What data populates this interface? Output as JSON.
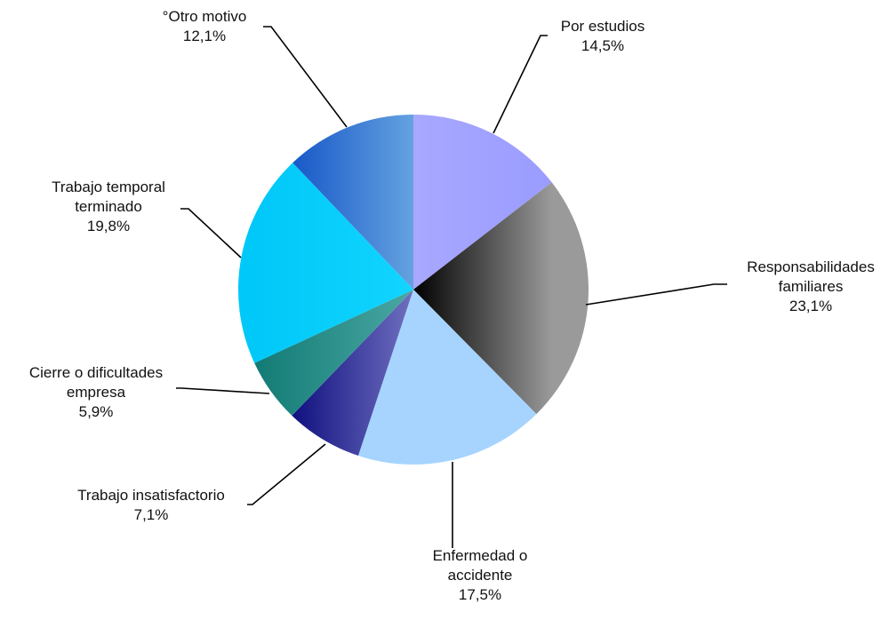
{
  "chart_data": {
    "type": "pie",
    "title": "",
    "start_angle_deg": 0,
    "direction": "clockwise",
    "slices": [
      {
        "label_lines": [
          "Por estudios"
        ],
        "percent_label": "14,5%",
        "value": 14.5,
        "color_start": "#a8a8ff",
        "color_end": "#9a9cff"
      },
      {
        "label_lines": [
          "Responsabilidades",
          "familiares"
        ],
        "percent_label": "23,1%",
        "value": 23.1,
        "color_start": "#000000",
        "color_end": "#9a9a9a"
      },
      {
        "label_lines": [
          "Enfermedad o",
          "accidente"
        ],
        "percent_label": "17,5%",
        "value": 17.5,
        "color_start": "#a6d4ff",
        "color_end": "#a6d4ff"
      },
      {
        "label_lines": [
          "Trabajo insatisfactorio"
        ],
        "percent_label": "7,1%",
        "value": 7.1,
        "color_start": "#101080",
        "color_end": "#7070c0"
      },
      {
        "label_lines": [
          "Cierre o dificultades",
          "empresa"
        ],
        "percent_label": "5,9%",
        "value": 5.9,
        "color_start": "#127a74",
        "color_end": "#4aa8a4"
      },
      {
        "label_lines": [
          "Trabajo temporal",
          "terminado"
        ],
        "percent_label": "19,8%",
        "value": 19.8,
        "color_start": "#00c8f8",
        "color_end": "#12d4ff"
      },
      {
        "label_lines": [
          "°Otro motivo"
        ],
        "percent_label": "12,1%",
        "value": 12.1,
        "color_start": "#1858c8",
        "color_end": "#64a2e0"
      }
    ]
  }
}
